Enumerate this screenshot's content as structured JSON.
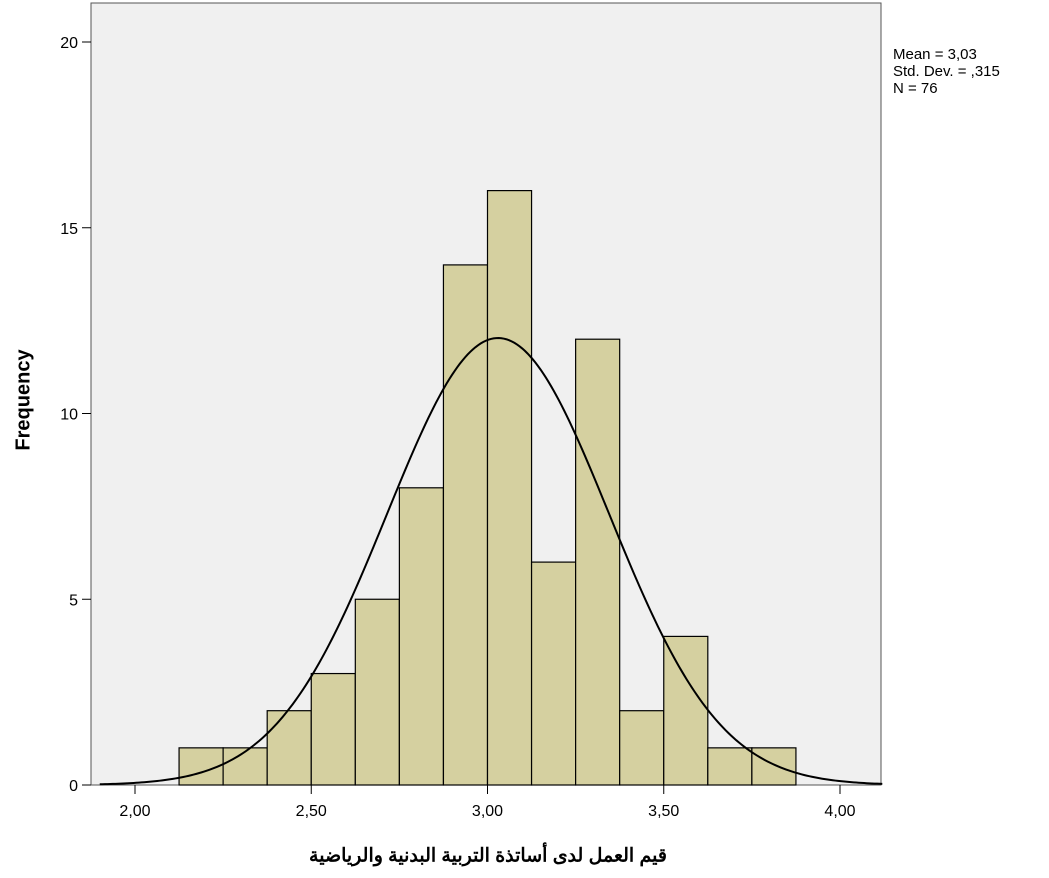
{
  "chart_data": {
    "type": "bar",
    "subtype": "histogram",
    "xlabel": "قيم العمل لدى أساتذة التربية البدنية والرياضية",
    "ylabel": "Frequency",
    "xlim": [
      1.9,
      4.12
    ],
    "ylim": [
      0,
      21
    ],
    "x_ticks": [
      {
        "value": 2.0,
        "label": "2,00"
      },
      {
        "value": 2.5,
        "label": "2,50"
      },
      {
        "value": 3.0,
        "label": "3,00"
      },
      {
        "value": 3.5,
        "label": "3,50"
      },
      {
        "value": 4.0,
        "label": "4,00"
      }
    ],
    "y_ticks": [
      {
        "value": 0,
        "label": "0"
      },
      {
        "value": 5,
        "label": "5"
      },
      {
        "value": 10,
        "label": "10"
      },
      {
        "value": 15,
        "label": "15"
      },
      {
        "value": 20,
        "label": "20"
      }
    ],
    "bins": [
      {
        "x0": 2.125,
        "x1": 2.25,
        "count": 1
      },
      {
        "x0": 2.25,
        "x1": 2.375,
        "count": 1
      },
      {
        "x0": 2.375,
        "x1": 2.5,
        "count": 2
      },
      {
        "x0": 2.5,
        "x1": 2.625,
        "count": 3
      },
      {
        "x0": 2.625,
        "x1": 2.75,
        "count": 5
      },
      {
        "x0": 2.75,
        "x1": 2.875,
        "count": 8
      },
      {
        "x0": 2.875,
        "x1": 3.0,
        "count": 14
      },
      {
        "x0": 3.0,
        "x1": 3.125,
        "count": 16
      },
      {
        "x0": 3.125,
        "x1": 3.25,
        "count": 6
      },
      {
        "x0": 3.25,
        "x1": 3.375,
        "count": 12
      },
      {
        "x0": 3.375,
        "x1": 3.5,
        "count": 2
      },
      {
        "x0": 3.5,
        "x1": 3.625,
        "count": 4
      },
      {
        "x0": 3.625,
        "x1": 3.75,
        "count": 1
      },
      {
        "x0": 3.75,
        "x1": 3.875,
        "count": 1
      }
    ],
    "normal_curve": {
      "mean": 3.03,
      "sd": 0.315,
      "n": 76,
      "bin_width": 0.125
    },
    "stats_text": [
      "Mean = 3,03",
      "Std. Dev. = ,315",
      "N = 76"
    ],
    "colors": {
      "bar_fill": "#d5d0a0",
      "plot_bg": "#f0f0f0",
      "line": "#000000"
    }
  }
}
